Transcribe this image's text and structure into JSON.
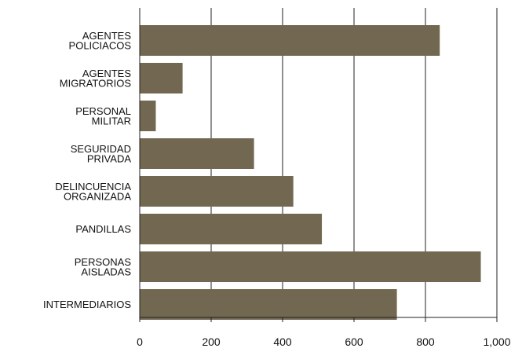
{
  "chart_data": {
    "type": "bar",
    "orientation": "horizontal",
    "categories": [
      [
        "AGENTES",
        "POLICIACOS"
      ],
      [
        "AGENTES",
        "MIGRATORIOS"
      ],
      [
        "PERSONAL",
        "MILITAR"
      ],
      [
        "SEGURIDAD",
        "PRIVADA"
      ],
      [
        "DELINCUENCIA",
        "ORGANIZADA"
      ],
      [
        "PANDILLAS"
      ],
      [
        "PERSONAS",
        "AISLADAS"
      ],
      [
        "INTERMEDIARIOS"
      ]
    ],
    "values": [
      840,
      120,
      45,
      320,
      430,
      510,
      955,
      720
    ],
    "xlim": [
      0,
      1000
    ],
    "xticks": [
      0,
      200,
      400,
      600,
      800,
      1000
    ],
    "xtick_labels": [
      "0",
      "200",
      "400",
      "600",
      "800",
      "1,000"
    ],
    "grid": "vertical",
    "bar_color": "#726851",
    "title": "",
    "xlabel": "",
    "ylabel": ""
  }
}
